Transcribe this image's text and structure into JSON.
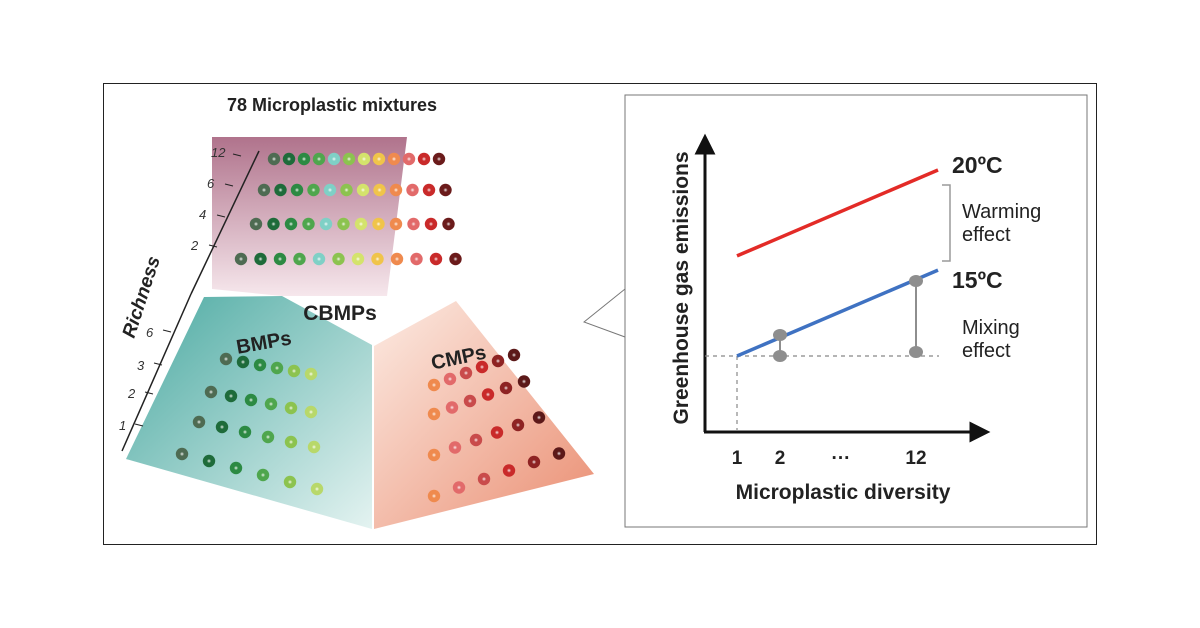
{
  "title": "78 Microplastic mixtures",
  "richness": {
    "axis_label": "Richness",
    "upper_ticks": [
      "12",
      "6",
      "4",
      "2"
    ],
    "lower_ticks": [
      "6",
      "3",
      "2",
      "1"
    ]
  },
  "groups": {
    "cbmps": "CBMPs",
    "bmps": "BMPs",
    "cmps": "CMPs"
  },
  "chart": {
    "ylabel": "Greenhouse gas emissions",
    "xlabel": "Microplastic diversity",
    "xticks": [
      "1",
      "2",
      "···",
      "12"
    ],
    "line_high_label": "20ºC",
    "line_low_label": "15ºC",
    "warming_label_1": "Warming",
    "warming_label_2": "effect",
    "mixing_label_1": "Mixing",
    "mixing_label_2": "effect"
  },
  "colors": {
    "cbmps_panel": "#b67f96",
    "bmps_panel": "#5fb4ad",
    "cmps_panel": "#ec9f86",
    "line_20c": "#e32b27",
    "line_15c": "#3f72c2",
    "marker": "#8e8e8e"
  },
  "chart_data": {
    "type": "line",
    "xlabel": "Microplastic diversity",
    "ylabel": "Greenhouse gas emissions",
    "categories": [
      "1",
      "2",
      "···",
      "12"
    ],
    "series": [
      {
        "name": "20ºC",
        "x": [
          1,
          12
        ],
        "relative_y": [
          0.55,
          1.0
        ]
      },
      {
        "name": "15ºC",
        "x": [
          1,
          12
        ],
        "relative_y": [
          0.0,
          0.45
        ]
      }
    ],
    "annotations": [
      "Warming effect",
      "Mixing effect"
    ],
    "grid": false
  }
}
